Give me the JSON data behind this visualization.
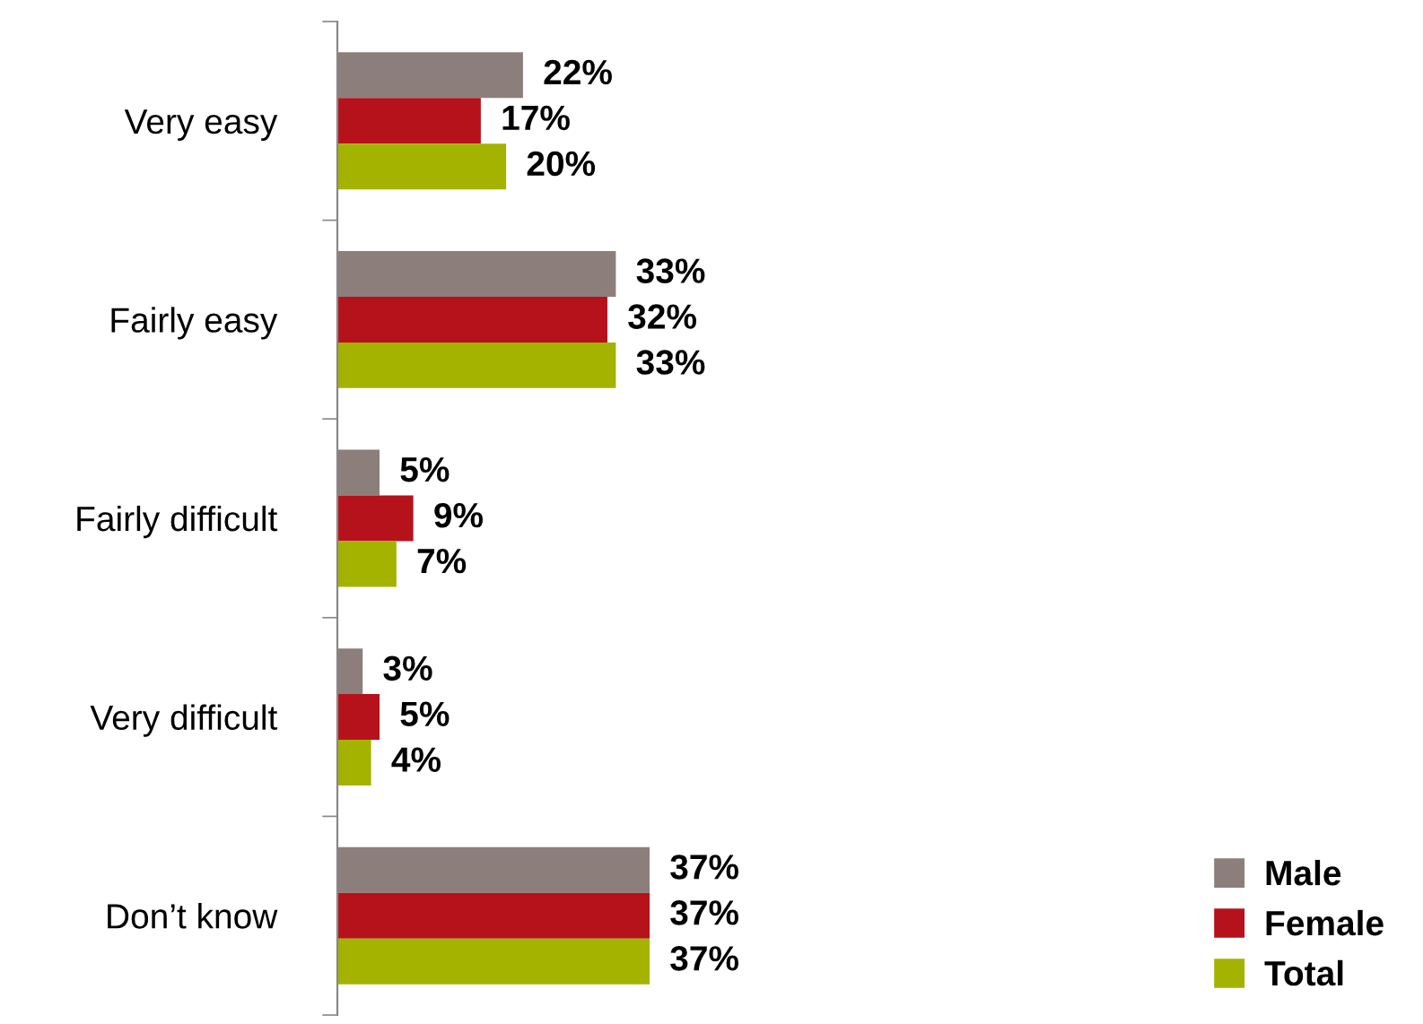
{
  "chart_data": {
    "type": "bar",
    "orientation": "horizontal",
    "categories": [
      "Very easy",
      "Fairly easy",
      "Fairly difficult",
      "Very difficult",
      "Don’t know"
    ],
    "series": [
      {
        "name": "Male",
        "color": "#8c7f7b",
        "values": [
          22,
          33,
          5,
          3,
          37
        ],
        "value_labels": [
          "22%",
          "33%",
          "5%",
          "3%",
          "37%"
        ]
      },
      {
        "name": "Female",
        "color": "#b5121b",
        "values": [
          17,
          32,
          9,
          5,
          37
        ],
        "value_labels": [
          "17%",
          "32%",
          "9%",
          "5%",
          "37%"
        ]
      },
      {
        "name": "Total",
        "color": "#a3b300",
        "values": [
          20,
          33,
          7,
          4,
          37
        ],
        "value_labels": [
          "20%",
          "33%",
          "7%",
          "4%",
          "37%"
        ]
      }
    ],
    "legend": "bottom right",
    "grid": false,
    "tick_labels": "y"
  }
}
